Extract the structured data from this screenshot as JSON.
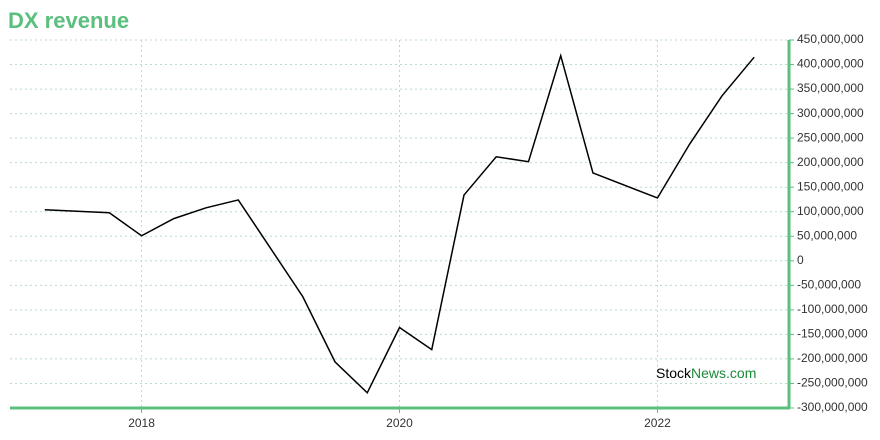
{
  "chart_data": {
    "type": "line",
    "title": "DX revenue",
    "watermark": [
      "Stock",
      "News.com"
    ],
    "x": [
      2017.25,
      2017.75,
      2018,
      2018.25,
      2018.5,
      2018.75,
      2019.25,
      2019.5,
      2019.75,
      2020,
      2020.25,
      2020.5,
      2020.75,
      2021,
      2021.25,
      2021.5,
      2022,
      2022.25,
      2022.5,
      2022.75
    ],
    "series": [
      {
        "color": "#000000",
        "values": [
          104000000,
          98000000,
          51000000,
          86000000,
          108000000,
          124000000,
          -73000000,
          -206000000,
          -269000000,
          -136000000,
          -181000000,
          134000000,
          212000000,
          202000000,
          418000000,
          179000000,
          128000000,
          238000000,
          336000000,
          415000000
        ]
      }
    ],
    "xlim": [
      2016.98,
      2023.02
    ],
    "xticks": [
      2018,
      2020,
      2022
    ],
    "ylim": [
      -300000000,
      450000000
    ],
    "yticks": [
      {
        "value": -300000000,
        "label": "-300,000,000"
      },
      {
        "value": -250000000,
        "label": "-250,000,000"
      },
      {
        "value": -200000000,
        "label": "-200,000,000"
      },
      {
        "value": -150000000,
        "label": "-150,000,000"
      },
      {
        "value": -100000000,
        "label": "-100,000,000"
      },
      {
        "value": -50000000,
        "label": "-50,000,000"
      },
      0,
      {
        "value": 50000000,
        "label": "50,000,000"
      },
      {
        "value": 100000000,
        "label": "100,000,000"
      },
      {
        "value": 150000000,
        "label": "150,000,000"
      },
      {
        "value": 200000000,
        "label": "200,000,000"
      },
      {
        "value": 250000000,
        "label": "250,000,000"
      },
      {
        "value": 300000000,
        "label": "300,000,000"
      },
      {
        "value": 350000000,
        "label": "350,000,000"
      },
      {
        "value": 400000000,
        "label": "400,000,000"
      },
      {
        "value": 450000000,
        "label": "450,000,000"
      }
    ],
    "grid": true,
    "axis_color": "#5bbf7d",
    "grid_color": "#b9dcc8"
  }
}
